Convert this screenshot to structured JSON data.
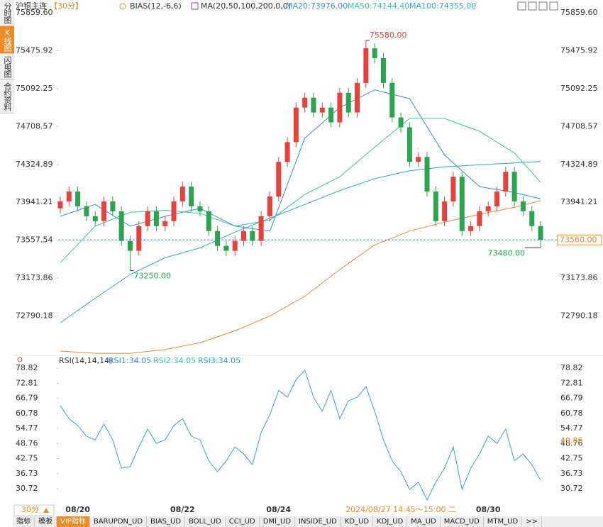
{
  "sidebar": {
    "tabs": [
      "分时图",
      "K线图",
      "闪电图",
      "合约资料"
    ],
    "active": 1
  },
  "header": {
    "symbol": "沪铜主连",
    "period": "【30分】",
    "indicators": [
      "BIAS(12,-6,6)",
      "MA(20,50,100,200,0,0)"
    ]
  },
  "chart_data": [
    {
      "type": "candlestick",
      "categories": [
        null,
        null,
        "08/20",
        null,
        null,
        null,
        null,
        null,
        null,
        null,
        null,
        null,
        null,
        null,
        "08/22",
        null,
        null,
        null,
        null,
        null,
        null,
        null,
        null,
        null,
        null,
        "08/24",
        null,
        null,
        null,
        null,
        null,
        null,
        null,
        null,
        null,
        null,
        null,
        null,
        null,
        null,
        null,
        null,
        null,
        null,
        null,
        null,
        null,
        null,
        null,
        "08/30",
        null,
        null,
        null,
        null,
        null,
        null
      ],
      "cursor": {
        "index": 39,
        "label": "2024/08/27 14:45～15:00 二"
      },
      "up_color": "#e8413b",
      "down_color": "#2aa44e",
      "candles": {
        "open": [
          73880,
          73950,
          74050,
          73900,
          73800,
          73750,
          73950,
          73850,
          73550,
          73450,
          73700,
          73850,
          73700,
          73750,
          73950,
          74100,
          73900,
          73850,
          73650,
          73500,
          73450,
          73550,
          73650,
          73550,
          73800,
          74000,
          74350,
          74550,
          74900,
          75000,
          74850,
          74900,
          74750,
          75050,
          74850,
          75150,
          75500,
          75400,
          75150,
          74800,
          74700,
          74350,
          74400,
          74050,
          73750,
          73950,
          74200,
          73650,
          73700,
          73850,
          73900,
          74050,
          74250,
          73950,
          73850,
          73700
        ],
        "high": [
          74000,
          74100,
          74100,
          73950,
          73850,
          74000,
          74000,
          73900,
          73600,
          73750,
          73900,
          73900,
          73800,
          74000,
          74150,
          74150,
          73950,
          73900,
          73700,
          73550,
          73600,
          73700,
          73700,
          73850,
          74050,
          74400,
          74600,
          74950,
          75050,
          75050,
          74950,
          74950,
          75100,
          75100,
          75200,
          75580,
          75550,
          75450,
          75200,
          74850,
          74750,
          74450,
          74450,
          74100,
          74000,
          74250,
          74250,
          73750,
          73900,
          73950,
          74100,
          74300,
          74300,
          74000,
          73900,
          73750
        ],
        "low": [
          73830,
          73900,
          73850,
          73750,
          73700,
          73700,
          73800,
          73500,
          73250,
          73400,
          73650,
          73650,
          73650,
          73700,
          73900,
          73850,
          73800,
          73600,
          73450,
          73400,
          73400,
          73500,
          73500,
          73500,
          73750,
          73950,
          74300,
          74500,
          74850,
          74800,
          74800,
          74700,
          74700,
          74800,
          74800,
          75100,
          75350,
          75100,
          74750,
          74650,
          74300,
          74300,
          74000,
          73700,
          73700,
          73900,
          73600,
          73600,
          73650,
          73800,
          73850,
          74000,
          73900,
          73800,
          73650,
          73480
        ],
        "close": [
          73950,
          74050,
          73900,
          73800,
          73750,
          73950,
          73850,
          73550,
          73450,
          73700,
          73850,
          73700,
          73750,
          73950,
          74100,
          73900,
          73850,
          73650,
          73500,
          73450,
          73550,
          73650,
          73550,
          73800,
          74000,
          74350,
          74550,
          74900,
          75000,
          74850,
          74900,
          74750,
          75050,
          74850,
          75150,
          75500,
          75400,
          75150,
          74800,
          74700,
          74350,
          74400,
          74050,
          73750,
          73950,
          74200,
          73650,
          73700,
          73850,
          73900,
          74050,
          74250,
          73950,
          73850,
          73700,
          73560
        ]
      },
      "series": [
        {
          "name": "MA20:73976.00",
          "color": "#3a8fd9",
          "x": [
            0,
            4,
            8,
            12,
            16,
            20,
            24,
            28,
            32,
            36,
            40,
            44,
            48,
            52,
            55
          ],
          "values": [
            73800,
            73920,
            73700,
            73800,
            73880,
            73700,
            73650,
            74590,
            74900,
            75080,
            74990,
            74420,
            74100,
            74040,
            73976
          ]
        },
        {
          "name": "MA50:74144.40",
          "color": "#3cc6a0",
          "x": [
            0,
            4,
            8,
            12,
            16,
            20,
            24,
            28,
            32,
            36,
            40,
            44,
            48,
            52,
            55
          ],
          "values": [
            73330,
            73700,
            73840,
            73860,
            73830,
            73700,
            73760,
            74020,
            74200,
            74500,
            74790,
            74790,
            74660,
            74440,
            74144.4
          ]
        },
        {
          "name": "MA100:74355.00",
          "color": "#2ea7d6",
          "x": [
            0,
            4,
            8,
            12,
            16,
            20,
            24,
            28,
            32,
            36,
            40,
            44,
            48,
            52,
            55
          ],
          "values": [
            72722,
            72970,
            73210,
            73380,
            73480,
            73640,
            73780,
            73920,
            74060,
            74180,
            74260,
            74300,
            74320,
            74340,
            74355
          ]
        },
        {
          "color": "#f28a3a",
          "x": [
            0,
            4,
            8,
            12,
            16,
            20,
            24,
            28,
            32,
            36,
            40,
            44,
            48,
            52,
            55
          ],
          "values": [
            72435,
            72413,
            72413,
            72450,
            72520,
            72640,
            72790,
            72990,
            73260,
            73510,
            73650,
            73740,
            73820,
            73890,
            73957
          ]
        }
      ],
      "ylim": [
        72399,
        75859.6
      ],
      "yticks": [
        {
          "value": 75859.6,
          "label": "75859.60"
        },
        75475.92,
        75092.25,
        74708.57,
        74324.89,
        73941.21,
        73557.54,
        73173.86,
        72790.18
      ],
      "last_price": {
        "value": 73560,
        "label": "73560.00"
      },
      "annotations": [
        {
          "index": 35,
          "value": 75580,
          "label": "75580.00"
        },
        {
          "index": 8,
          "value": 73250,
          "label": "73250.00"
        },
        {
          "index": 55,
          "value": 73480,
          "label": "73480.00"
        }
      ]
    },
    {
      "type": "line",
      "title": "RSI(14,14,14)",
      "legend": [
        {
          "name": "RSI1:34.05",
          "color": "#3a8fd9"
        },
        {
          "name": "RSI2:34.05",
          "color": "#3cc6a0"
        },
        {
          "name": "RSI3:34.05",
          "color": "#2ea7d6"
        }
      ],
      "series": [
        {
          "color": "#3a9fe0",
          "values": [
            63.8,
            58.7,
            55.9,
            51.7,
            50.2,
            56.5,
            50.2,
            38.9,
            39.5,
            47.4,
            54.5,
            48.8,
            50.2,
            55.9,
            58.7,
            51.7,
            50.2,
            41.8,
            37.5,
            41.8,
            47.4,
            44.6,
            40.3,
            53.1,
            60.2,
            70.0,
            67.2,
            74.3,
            78.0,
            67.2,
            61.6,
            70.0,
            58.7,
            65.8,
            67.2,
            71.5,
            61.6,
            50.2,
            41.8,
            37.5,
            30.4,
            33.3,
            26.2,
            33.3,
            38.9,
            47.4,
            30.4,
            38.9,
            44.6,
            51.7,
            48.8,
            54.5,
            41.8,
            44.6,
            40.3,
            34.05
          ]
        }
      ],
      "cursor_value": 49.86,
      "ylim": [
        24.2,
        81.4
      ],
      "yticks": [
        78.82,
        72.81,
        66.79,
        60.78,
        54.77,
        48.76,
        42.75,
        36.73,
        30.72
      ]
    }
  ],
  "footer": {
    "period": "30分",
    "tabs": [
      "指标",
      "模板",
      "VIP指标",
      "BARUPDN_UD",
      "BIAS_UD",
      "BOLL_UD",
      "CCI_UD",
      "DMI_UD",
      "INSIDE_UD",
      "KD_UD",
      "KDJ_UD",
      "MA_UD",
      "MACD_UD",
      "MTM_UD",
      ">>"
    ],
    "active": 2
  }
}
